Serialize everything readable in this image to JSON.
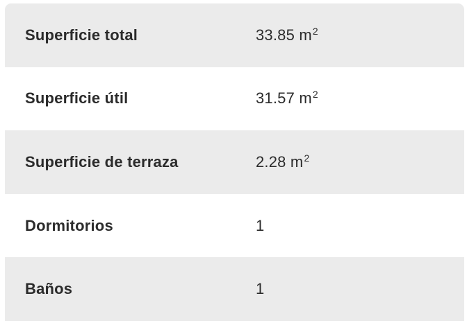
{
  "page": {
    "background_color": "#ffffff"
  },
  "table": {
    "row_background_gray": "#ebebeb",
    "row_background_white": "#ffffff",
    "text_color": "#2b2b2b",
    "rows": [
      {
        "label": "Superficie total",
        "value": "33.85 m",
        "value_sup": "2"
      },
      {
        "label": "Superficie útil",
        "value": "31.57 m",
        "value_sup": "2"
      },
      {
        "label": "Superficie de terraza",
        "value": "2.28 m",
        "value_sup": "2"
      },
      {
        "label": "Dormitorios",
        "value": "1",
        "value_sup": ""
      },
      {
        "label": "Baños",
        "value": "1",
        "value_sup": ""
      }
    ]
  }
}
